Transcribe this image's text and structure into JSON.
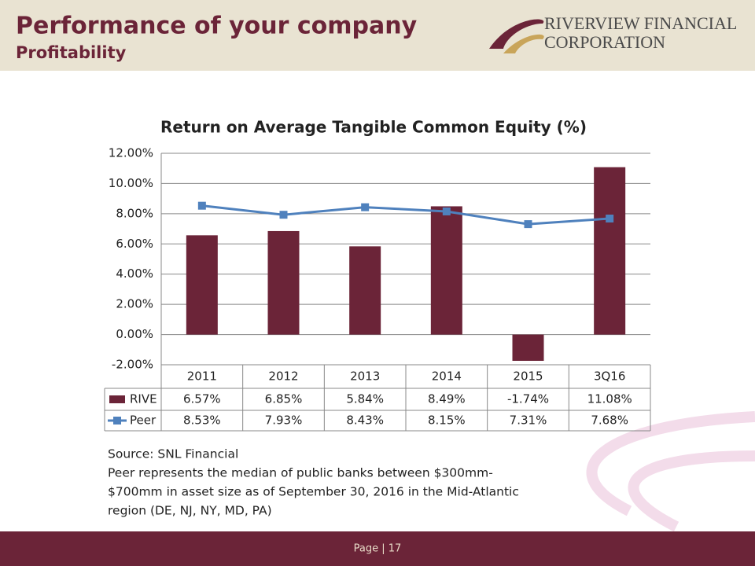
{
  "header": {
    "title": "Performance of your company",
    "subtitle": "Profitability",
    "logo_line1": "RIVERVIEW FINANCIAL",
    "logo_line2": "CORPORATION"
  },
  "chart_data": {
    "type": "bar",
    "title": "Return on Average Tangible Common Equity (%)",
    "categories": [
      "2011",
      "2012",
      "2013",
      "2014",
      "2015",
      "3Q16"
    ],
    "series": [
      {
        "name": "RIVE",
        "type": "bar",
        "color": "#6b2438",
        "values": [
          6.57,
          6.85,
          5.84,
          8.49,
          -1.74,
          11.08
        ],
        "value_labels": [
          "6.57%",
          "6.85%",
          "5.84%",
          "8.49%",
          "-1.74%",
          "11.08%"
        ]
      },
      {
        "name": "Peer",
        "type": "line",
        "color": "#4f81bd",
        "values": [
          8.53,
          7.93,
          8.43,
          8.15,
          7.31,
          7.68
        ],
        "value_labels": [
          "8.53%",
          "7.93%",
          "8.43%",
          "8.15%",
          "7.31%",
          "7.68%"
        ]
      }
    ],
    "ylim": [
      -2,
      12
    ],
    "yticks": [
      {
        "value": -2,
        "label": "-2.00%"
      },
      {
        "value": 0,
        "label": "0.00%"
      },
      {
        "value": 2,
        "label": "2.00%"
      },
      {
        "value": 4,
        "label": "4.00%"
      },
      {
        "value": 6,
        "label": "6.00%"
      },
      {
        "value": 8,
        "label": "8.00%"
      },
      {
        "value": 10,
        "label": "10.00%"
      },
      {
        "value": 12,
        "label": "12.00%"
      }
    ],
    "grid": true
  },
  "notes": [
    "Source: SNL Financial",
    "Peer represents the median of public banks between $300mm-",
    "$700mm in asset size as of September 30, 2016 in the Mid-Atlantic",
    "region (DE, NJ, NY, MD, PA)"
  ],
  "footer": "Page | 17"
}
